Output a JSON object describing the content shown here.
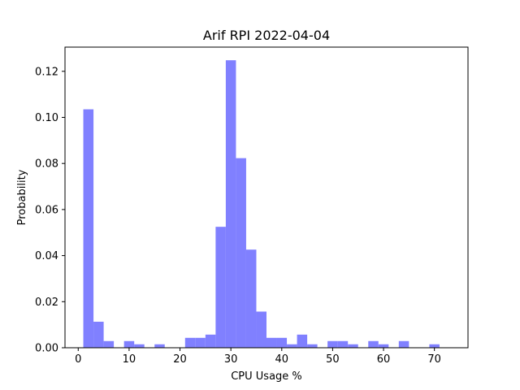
{
  "chart_data": {
    "type": "bar",
    "title": "Arif RPI 2022-04-04",
    "xlabel": "CPU Usage %",
    "ylabel": "Probability",
    "xlim": [
      -2.6,
      76.6
    ],
    "ylim": [
      0,
      0.1305
    ],
    "xticks": [
      0,
      10,
      20,
      30,
      40,
      50,
      60,
      70
    ],
    "xtick_labels": [
      "0",
      "10",
      "20",
      "30",
      "40",
      "50",
      "60",
      "70"
    ],
    "yticks": [
      0.0,
      0.02,
      0.04,
      0.06,
      0.08,
      0.1,
      0.12
    ],
    "ytick_labels": [
      "0.00",
      "0.02",
      "0.04",
      "0.06",
      "0.08",
      "0.10",
      "0.12"
    ],
    "grid": false,
    "bar_color": "#8080ff",
    "bins": [
      {
        "x0": 1.0,
        "x1": 3.0,
        "value": 0.1035
      },
      {
        "x0": 3.0,
        "x1": 5.0,
        "value": 0.0113
      },
      {
        "x0": 5.0,
        "x1": 7.0,
        "value": 0.0029
      },
      {
        "x0": 7.0,
        "x1": 9.0,
        "value": 0.0
      },
      {
        "x0": 9.0,
        "x1": 11.0,
        "value": 0.0029
      },
      {
        "x0": 11.0,
        "x1": 13.0,
        "value": 0.0015
      },
      {
        "x0": 13.0,
        "x1": 15.0,
        "value": 0.0
      },
      {
        "x0": 15.0,
        "x1": 17.0,
        "value": 0.0015
      },
      {
        "x0": 17.0,
        "x1": 19.0,
        "value": 0.0
      },
      {
        "x0": 19.0,
        "x1": 21.0,
        "value": 0.0
      },
      {
        "x0": 21.0,
        "x1": 23.0,
        "value": 0.0043
      },
      {
        "x0": 23.0,
        "x1": 25.0,
        "value": 0.0043
      },
      {
        "x0": 25.0,
        "x1": 27.0,
        "value": 0.0057
      },
      {
        "x0": 27.0,
        "x1": 29.0,
        "value": 0.0525
      },
      {
        "x0": 29.0,
        "x1": 31.0,
        "value": 0.1248
      },
      {
        "x0": 31.0,
        "x1": 33.0,
        "value": 0.0823
      },
      {
        "x0": 33.0,
        "x1": 35.0,
        "value": 0.0426
      },
      {
        "x0": 35.0,
        "x1": 37.0,
        "value": 0.0157
      },
      {
        "x0": 37.0,
        "x1": 39.0,
        "value": 0.0043
      },
      {
        "x0": 39.0,
        "x1": 41.0,
        "value": 0.0043
      },
      {
        "x0": 41.0,
        "x1": 43.0,
        "value": 0.0015
      },
      {
        "x0": 43.0,
        "x1": 45.0,
        "value": 0.0057
      },
      {
        "x0": 45.0,
        "x1": 47.0,
        "value": 0.0015
      },
      {
        "x0": 47.0,
        "x1": 49.0,
        "value": 0.0
      },
      {
        "x0": 49.0,
        "x1": 51.0,
        "value": 0.0029
      },
      {
        "x0": 51.0,
        "x1": 53.0,
        "value": 0.0029
      },
      {
        "x0": 53.0,
        "x1": 55.0,
        "value": 0.0015
      },
      {
        "x0": 55.0,
        "x1": 57.0,
        "value": 0.0
      },
      {
        "x0": 57.0,
        "x1": 59.0,
        "value": 0.0029
      },
      {
        "x0": 59.0,
        "x1": 61.0,
        "value": 0.0015
      },
      {
        "x0": 61.0,
        "x1": 63.0,
        "value": 0.0
      },
      {
        "x0": 63.0,
        "x1": 65.0,
        "value": 0.0029
      },
      {
        "x0": 65.0,
        "x1": 67.0,
        "value": 0.0
      },
      {
        "x0": 67.0,
        "x1": 69.0,
        "value": 0.0
      },
      {
        "x0": 69.0,
        "x1": 71.0,
        "value": 0.0015
      }
    ]
  }
}
